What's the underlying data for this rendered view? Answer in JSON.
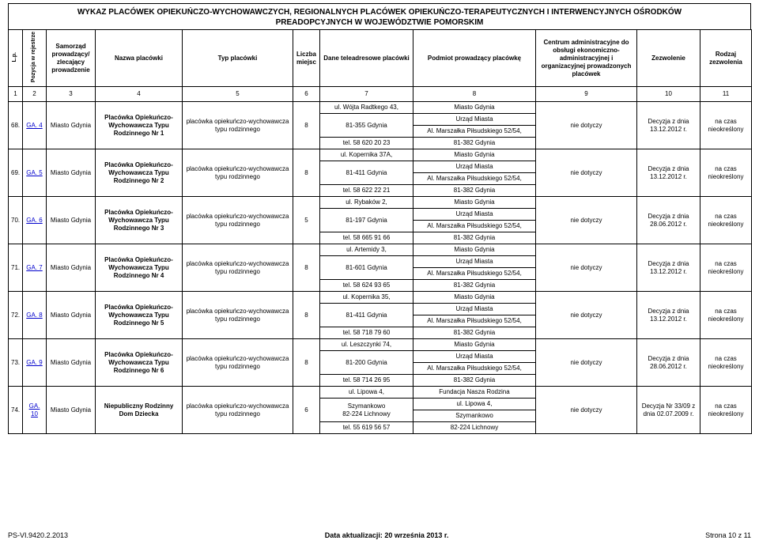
{
  "title_line1": "WYKAZ PLACÓWEK OPIEKUŃCZO-WYCHOWAWCZYCH, REGIONALNYCH PLACÓWEK OPIEKUŃCZO-TERAPEUTYCZNYCH I INTERWENCYJNYCH OŚRODKÓW",
  "title_line2": "PREADOPCYJNYCH W WOJEWÓDZTWIE POMORSKIM",
  "headers": {
    "h1": "L.p.",
    "h2": "Pozycja w rejestrze",
    "h3": "Samorząd prowadzący/ zlecający prowadzenie",
    "h4": "Nazwa placówki",
    "h5": "Typ placówki",
    "h6": "Liczba miejsc",
    "h7": "Dane teleadresowe placówki",
    "h8": "Podmiot prowadzący placówkę",
    "h9": "Centrum administracyjne do obsługi ekonomiczno-administracyjnej i organizacyjnej prowadzonych placówek",
    "h10": "Zezwolenie",
    "h11": "Rodzaj zezwolenia"
  },
  "numrow": {
    "n1": "1",
    "n2": "2",
    "n3": "3",
    "n4": "4",
    "n5": "5",
    "n6": "6",
    "n7": "7",
    "n8": "8",
    "n9": "9",
    "n10": "10",
    "n11": "11"
  },
  "rows": [
    {
      "lp": "68.",
      "reg": "GA. 4",
      "sam": "Miasto Gdynia",
      "nazwa": "Placówka Opiekuńczo-Wychowawcza Typu Rodzinnego Nr 1",
      "typ": "placówka opiekuńczo-wychowawcza typu rodzinnego",
      "miejsc": "8",
      "tele1": "ul. Wójta Radtkego 43,",
      "tele2": "81-355 Gdynia",
      "tele3": "tel. 58 620 20 23",
      "pod1": "Miasto Gdynia",
      "pod2": "Urząd Miasta",
      "pod3": "Al. Marszałka Piłsudskiego 52/54,",
      "pod4": "81-382 Gdynia",
      "centrum": "nie dotyczy",
      "zez": "Decyzja z dnia 13.12.2012 r.",
      "rodzaj": "na czas nieokreślony"
    },
    {
      "lp": "69.",
      "reg": "GA. 5",
      "sam": "Miasto Gdynia",
      "nazwa": "Placówka Opiekuńczo-Wychowawcza Typu Rodzinnego Nr 2",
      "typ": "placówka opiekuńczo-wychowawcza typu rodzinnego",
      "miejsc": "8",
      "tele1": "ul. Kopernika 37A,",
      "tele2": "81-411 Gdynia",
      "tele3": "tel. 58 622 22 21",
      "pod1": "Miasto Gdynia",
      "pod2": "Urząd Miasta",
      "pod3": "Al. Marszałka Piłsudskiego 52/54,",
      "pod4": "81-382 Gdynia",
      "centrum": "nie dotyczy",
      "zez": "Decyzja  z dnia 13.12.2012 r.",
      "rodzaj": "na czas nieokreślony"
    },
    {
      "lp": "70.",
      "reg": "GA. 6",
      "sam": "Miasto Gdynia",
      "nazwa": "Placówka Opiekuńczo-Wychowawcza Typu Rodzinnego Nr 3",
      "typ": "placówka opiekuńczo-wychowawcza typu rodzinnego",
      "miejsc": "5",
      "tele1": "ul. Rybaków 2,",
      "tele2": "81-197 Gdynia",
      "tele3": "tel. 58 665 91 66",
      "pod1": "Miasto Gdynia",
      "pod2": "Urząd Miasta",
      "pod3": "Al. Marszałka Piłsudskiego 52/54,",
      "pod4": "81-382 Gdynia",
      "centrum": "nie dotyczy",
      "zez": "Decyzja z dnia 28.06.2012 r.",
      "rodzaj": "na czas nieokreślony"
    },
    {
      "lp": "71.",
      "reg": "GA. 7",
      "sam": "Miasto Gdynia",
      "nazwa": "Placówka Opiekuńczo-Wychowawcza Typu Rodzinnego Nr 4",
      "typ": "placówka opiekuńczo-wychowawcza typu rodzinnego",
      "miejsc": "8",
      "tele1": "ul. Artemidy 3,",
      "tele2": "81-601 Gdynia",
      "tele3": "tel. 58 624 93 65",
      "pod1": "Miasto Gdynia",
      "pod2": "Urząd Miasta",
      "pod3": "Al. Marszałka Piłsudskiego 52/54,",
      "pod4": "81-382 Gdynia",
      "centrum": "nie dotyczy",
      "zez": "Decyzja z dnia 13.12.2012 r.",
      "rodzaj": "na czas nieokreślony"
    },
    {
      "lp": "72.",
      "reg": "GA. 8",
      "sam": "Miasto Gdynia",
      "nazwa": "Placówka Opiekuńczo-Wychowawcza Typu Rodzinnego Nr 5",
      "typ": "placówka opiekuńczo-wychowawcza typu rodzinnego",
      "miejsc": "8",
      "tele1": "ul. Kopernika 35,",
      "tele2": "81-411 Gdynia",
      "tele3": "tel. 58 718 79 60",
      "pod1": "Miasto Gdynia",
      "pod2": "Urząd Miasta",
      "pod3": "Al. Marszałka Piłsudskiego 52/54,",
      "pod4": "81-382 Gdynia",
      "centrum": "nie dotyczy",
      "zez": "Decyzja z dnia 13.12.2012 r.",
      "rodzaj": "na czas nieokreślony"
    },
    {
      "lp": "73.",
      "reg": "GA. 9",
      "sam": "Miasto Gdynia",
      "nazwa": "Placówka Opiekuńczo-Wychowawcza Typu Rodzinnego Nr 6",
      "typ": "placówka opiekuńczo-wychowawcza typu rodzinnego",
      "miejsc": "8",
      "tele1": "ul. Leszczynki 74,",
      "tele2": "81-200 Gdynia",
      "tele3": "tel. 58 714 26 95",
      "pod1": "Miasto Gdynia",
      "pod2": "Urząd Miasta",
      "pod3": "Al. Marszałka Piłsudskiego 52/54,",
      "pod4": "81-382 Gdynia",
      "centrum": "nie dotyczy",
      "zez": "Decyzja z dnia 28.06.2012 r.",
      "rodzaj": "na czas nieokreślony"
    },
    {
      "lp": "74.",
      "reg": "GA. 10",
      "sam": "Miasto Gdynia",
      "nazwa": "Niepubliczny Rodzinny Dom Dziecka",
      "typ": "placówka opiekuńczo-wychowawcza typu rodzinnego",
      "miejsc": "6",
      "tele1": "ul. Lipowa 4,",
      "tele2": "Szymankowo",
      "tele2b": "82-224 Lichnowy",
      "tele3": "tel. 55 619 56 57",
      "pod1": "Fundacja Nasza Rodzina",
      "pod2": "ul. Lipowa 4,",
      "pod3": "Szymankowo",
      "pod4": "82-224 Lichnowy",
      "centrum": "nie dotyczy",
      "zez": "Decyzja Nr 33/09 z dnia 02.07.2009 r.",
      "rodzaj": "na czas nieokreślony"
    }
  ],
  "footer": {
    "left": "PS-VI.9420.2.2013",
    "center": "Data aktualizacji: 20 września 2013 r.",
    "right": "Strona 10 z 11"
  }
}
